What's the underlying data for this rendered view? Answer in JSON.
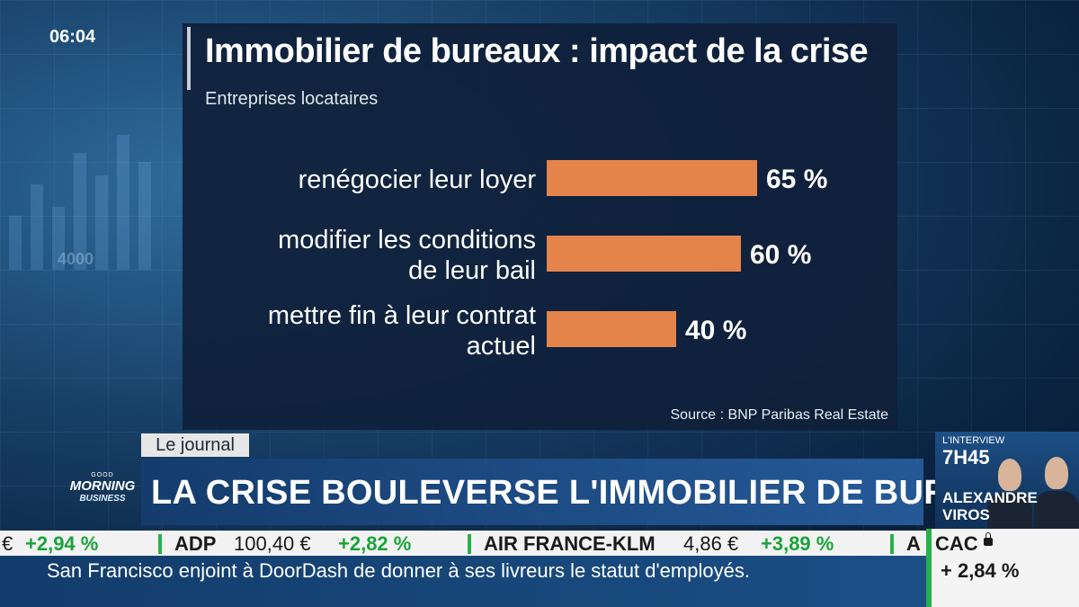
{
  "clock": "06:04",
  "chart_data": {
    "type": "bar",
    "orientation": "horizontal",
    "title": "Immobilier de bureaux : impact de la crise",
    "subtitle": "Entreprises locataires",
    "categories": [
      [
        "renégocier leur loyer"
      ],
      [
        "modifier les conditions",
        "de leur bail"
      ],
      [
        "mettre fin à leur contrat",
        "actuel"
      ]
    ],
    "values": [
      65,
      60,
      40
    ],
    "value_labels": [
      "65 %",
      "60 %",
      "40 %"
    ],
    "bar_color": "#e5844a",
    "grid": false,
    "source": "Source : BNP Paribas Real Estate"
  },
  "banner": {
    "tag": "Le journal",
    "headline": "LA CRISE BOULEVERSE L'IMMOBILIER DE BUREAU",
    "logo": {
      "line1": "GOOD",
      "line2": "MORNING",
      "line3": "BUSINESS"
    }
  },
  "interview": {
    "label": "L'INTERVIEW",
    "time": "7H45",
    "name_first": "ALEXANDRE",
    "name_last": "VIROS"
  },
  "ticker": {
    "lead_currency": "€",
    "lead_change": "+2,94 %",
    "items": [
      {
        "name": "ADP",
        "value": "100,40 €",
        "change": "+2,82 %"
      },
      {
        "name": "AIR FRANCE-KLM",
        "value": "4,86 €",
        "change": "+3,89 %"
      }
    ],
    "trailing": "A"
  },
  "news": "San Francisco enjoint à DoorDash de donner à ses livreurs le statut d'employés.",
  "index": {
    "name": "CAC",
    "change": "+ 2,84 %"
  },
  "colors": {
    "accent_green": "#27b24a",
    "bar": "#e5844a"
  }
}
